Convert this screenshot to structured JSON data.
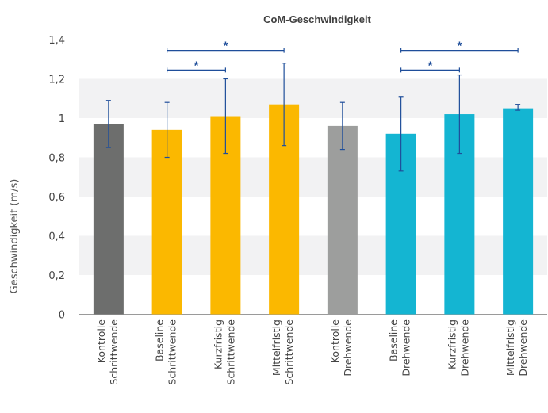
{
  "chart_data": {
    "type": "bar",
    "title": "CoM-Geschwindigkeit",
    "ylabel": "Geschwindigkeit (m/s)",
    "xlabel": "",
    "ylim": [
      0,
      1.4
    ],
    "yticks": [
      "0",
      "0,2",
      "0,4",
      "0,6",
      "0,8",
      "1",
      "1,2",
      "1,4"
    ],
    "grid": "horizontal bands",
    "categories": [
      [
        "Kontrolle",
        "Schrittwende"
      ],
      [
        "Baseline",
        "Schrittwende"
      ],
      [
        "Kurzfristig",
        "Schrittwende"
      ],
      [
        "Mittelfristig",
        "Schrittwende"
      ],
      [
        "Kontrolle",
        "Drehwende"
      ],
      [
        "Baseline",
        "Drehwende"
      ],
      [
        "Kurzfristig",
        "Drehwende"
      ],
      [
        "Mittelfristig",
        "Drehwende"
      ]
    ],
    "values": [
      0.97,
      0.94,
      1.01,
      1.07,
      0.96,
      0.92,
      1.02,
      1.05
    ],
    "error_low": [
      0.85,
      0.8,
      0.82,
      0.86,
      0.84,
      0.73,
      0.82,
      1.04
    ],
    "error_high": [
      1.09,
      1.08,
      1.2,
      1.28,
      1.08,
      1.11,
      1.22,
      1.07
    ],
    "colors": [
      "#6d6e6d",
      "#fbb800",
      "#fbb800",
      "#fbb800",
      "#9d9e9d",
      "#14b5d2",
      "#14b5d2",
      "#14b5d2"
    ],
    "error_color": "#1f4e9a",
    "significance": [
      {
        "from": 1,
        "to": 2,
        "label": "*",
        "level": 1.245
      },
      {
        "from": 1,
        "to": 3,
        "label": "*",
        "level": 1.345
      },
      {
        "from": 5,
        "to": 6,
        "label": "*",
        "level": 1.245
      },
      {
        "from": 5,
        "to": 7,
        "label": "*",
        "level": 1.345
      }
    ]
  }
}
